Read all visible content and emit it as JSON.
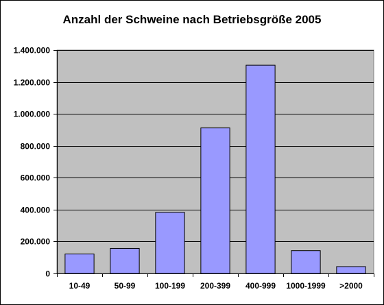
{
  "chart_data": {
    "type": "bar",
    "title": "Anzahl der Schweine nach Betriebsgröße 2005",
    "categories": [
      "10-49",
      "50-99",
      "100-199",
      "200-399",
      "400-999",
      "1000-1999",
      ">2000"
    ],
    "values": [
      122000,
      157000,
      383000,
      912000,
      1305000,
      143000,
      43000
    ],
    "ylim": [
      0,
      1400000
    ],
    "y_ticks": [
      0,
      200000,
      400000,
      600000,
      800000,
      1000000,
      1200000,
      1400000
    ],
    "y_tick_labels": [
      "0",
      "200.000",
      "400.000",
      "600.000",
      "800.000",
      "1.000.000",
      "1.200.000",
      "1.400.000"
    ],
    "grid": true,
    "legend": "none",
    "colors": {
      "plot_background": "#c0c0c0",
      "bar_fill": "#9999ff",
      "bar_stroke": "#000000",
      "gridline": "#000000"
    }
  }
}
